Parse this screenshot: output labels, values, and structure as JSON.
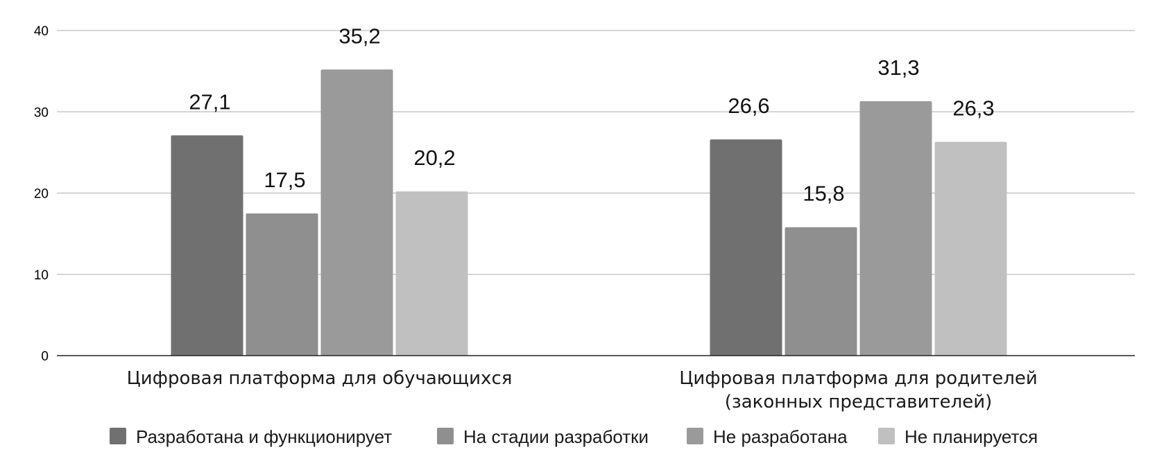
{
  "chart_data": {
    "type": "bar",
    "categories": [
      [
        "Цифровая платформа для обучающихся"
      ],
      [
        "Цифровая платформа для родителей",
        "(законных представителей)"
      ]
    ],
    "series": [
      {
        "name": "Разработана и функционирует",
        "values": [
          27.1,
          26.6
        ],
        "labels": [
          "27,1",
          "26,6"
        ],
        "color": "#707070"
      },
      {
        "name": "На стадии разработки",
        "values": [
          17.5,
          15.8
        ],
        "labels": [
          "17,5",
          "15,8"
        ],
        "color": "#8f8f8f"
      },
      {
        "name": "Не разработана",
        "values": [
          35.2,
          31.3
        ],
        "labels": [
          "35,2",
          "31,3"
        ],
        "color": "#9a9a9a"
      },
      {
        "name": "Не планируется",
        "values": [
          20.2,
          26.3
        ],
        "labels": [
          "20,2",
          "26,3"
        ],
        "color": "#c0c0c0"
      }
    ],
    "ylim": [
      0,
      40
    ],
    "yticks": [
      "0",
      "10",
      "20",
      "30",
      "40"
    ],
    "grid": true,
    "legend_position": "bottom",
    "title": "",
    "xlabel": "",
    "ylabel": ""
  }
}
